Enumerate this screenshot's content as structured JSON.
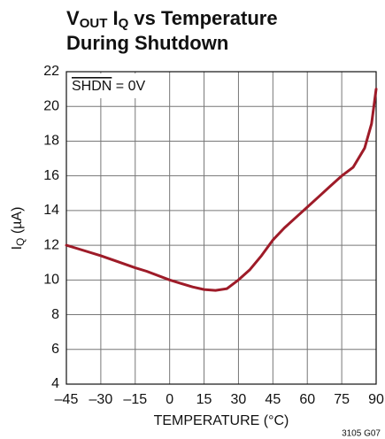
{
  "chart_data": {
    "type": "line",
    "title_parts": [
      "V",
      "OUT",
      " I",
      "Q",
      " vs Temperature"
    ],
    "title_line2": "During Shutdown",
    "ylabel_parts": [
      "I",
      "Q",
      " (µA)"
    ],
    "xlabel": "TEMPERATURE (°C)",
    "annotation_parts": [
      "SHDN",
      " = 0V"
    ],
    "footnote": "3105 G07",
    "x": [
      -45,
      -40,
      -30,
      -15,
      -10,
      0,
      5,
      10,
      15,
      20,
      25,
      30,
      35,
      40,
      45,
      50,
      55,
      60,
      65,
      70,
      75,
      80,
      85,
      88,
      90
    ],
    "series": [
      {
        "color": "#9e1b28",
        "values": [
          12.0,
          11.8,
          11.4,
          10.7,
          10.5,
          10.0,
          9.8,
          9.6,
          9.45,
          9.4,
          9.5,
          10.0,
          10.6,
          11.4,
          12.3,
          13.0,
          13.6,
          14.2,
          14.8,
          15.4,
          16.0,
          16.5,
          17.6,
          19.0,
          21.0
        ]
      }
    ],
    "xlim": [
      -45,
      90
    ],
    "xticks": [
      {
        "value": -45,
        "label": "–45"
      },
      {
        "value": -30,
        "label": "–30"
      },
      {
        "value": -15,
        "label": "–15"
      },
      0,
      15,
      30,
      45,
      60,
      75,
      90
    ],
    "ylim": [
      4,
      22
    ],
    "yticks": [
      4,
      6,
      8,
      10,
      12,
      14,
      16,
      18,
      20,
      22
    ],
    "grid": true
  }
}
